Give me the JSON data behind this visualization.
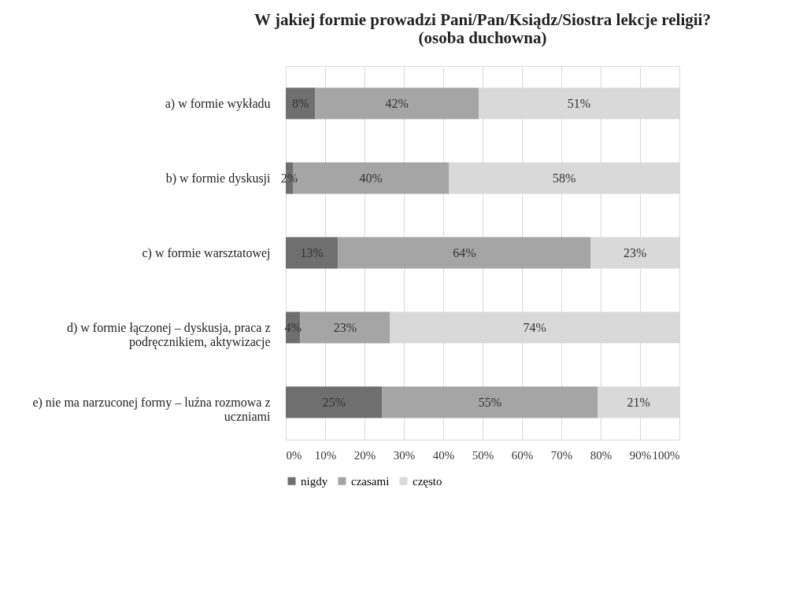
{
  "chart_data": {
    "type": "bar",
    "orientation": "horizontal",
    "stacked": true,
    "title": "W jakiej formie prowadzi Pani/Pan/Ksiądz/Siostra lekcje religii?\n(osoba duchowna)",
    "categories": [
      "a)      w formie wykładu",
      "b)      w formie dyskusji",
      "c)      w formie warsztatowej",
      "d)      w formie łączonej – dyskusja, praca z\npodręcznikiem, aktywizacje",
      "e)      nie ma narzuconej formy – luźna rozmowa z\nuczniami"
    ],
    "series": [
      {
        "name": "nigdy",
        "color": "#6f6f6f",
        "values": [
          7.5,
          1.8,
          13.3,
          3.7,
          24.5
        ],
        "value_labels": [
          "8%",
          "2%",
          "13%",
          "4%",
          "25%"
        ]
      },
      {
        "name": "czasami",
        "color": "#a5a5a5",
        "values": [
          41.5,
          39.7,
          64.2,
          22.8,
          54.8
        ],
        "value_labels": [
          "42%",
          "40%",
          "64%",
          "23%",
          "55%"
        ]
      },
      {
        "name": "często",
        "color": "#d9d9d9",
        "values": [
          51.0,
          58.5,
          22.5,
          73.5,
          20.7
        ],
        "value_labels": [
          "51%",
          "58%",
          "23%",
          "74%",
          "21%"
        ]
      }
    ],
    "xlim": [
      0,
      100
    ],
    "xticks": [
      {
        "value": 0,
        "label": "0%"
      },
      {
        "value": 10,
        "label": "10%"
      },
      {
        "value": 20,
        "label": "20%"
      },
      {
        "value": 30,
        "label": "30%"
      },
      {
        "value": 40,
        "label": "40%"
      },
      {
        "value": 50,
        "label": "50%"
      },
      {
        "value": 60,
        "label": "60%"
      },
      {
        "value": 70,
        "label": "70%"
      },
      {
        "value": 80,
        "label": "80%"
      },
      {
        "value": 90,
        "label": "90%"
      },
      {
        "value": 100,
        "label": "100%"
      }
    ],
    "grid": "x",
    "legend": "bottom"
  }
}
